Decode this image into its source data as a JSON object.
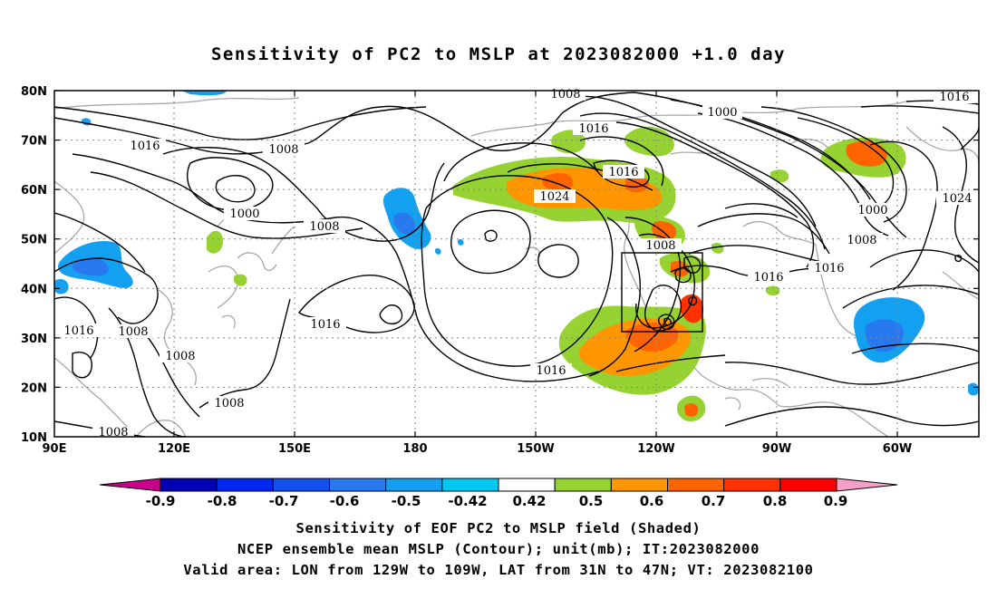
{
  "title": "Sensitivity of PC2 to MSLP at 2023082000 +1.0 day",
  "lat_labels": [
    "80N",
    "70N",
    "60N",
    "50N",
    "40N",
    "30N",
    "20N",
    "10N"
  ],
  "lon_labels": [
    "90E",
    "120E",
    "150E",
    "180",
    "150W",
    "120W",
    "90W",
    "60W"
  ],
  "contour_labels": [
    "1008",
    "1016",
    "1000",
    "1016",
    "1008",
    "1016",
    "1008",
    "1000",
    "1008",
    "1016",
    "1016",
    "1016",
    "1024",
    "1024",
    "1008",
    "1016",
    "1016",
    "1008",
    "1008",
    "1000",
    "1008",
    "1016",
    "1024",
    "1008",
    "1016",
    "1008"
  ],
  "colorbar": {
    "ticks": [
      "-0.9",
      "-0.8",
      "-0.7",
      "-0.6",
      "-0.5",
      "-0.42",
      "0.42",
      "0.5",
      "0.6",
      "0.7",
      "0.8",
      "0.9"
    ],
    "colors": [
      "#c8008c",
      "#0000b4",
      "#0028f0",
      "#1450f0",
      "#2878f0",
      "#14a0f0",
      "#00c8f0",
      "#ffffff",
      "#96d232",
      "#ff9600",
      "#ff6400",
      "#ff3200",
      "#ff0000",
      "#f5a0c8"
    ]
  },
  "captions": [
    "Sensitivity of EOF PC2 to MSLP field (Shaded)",
    "NCEP ensemble mean MSLP (Contour); unit(mb); IT:2023082000",
    "Valid area: LON from 129W to 109W, LAT from 31N to 47N; VT: 2023082100"
  ]
}
